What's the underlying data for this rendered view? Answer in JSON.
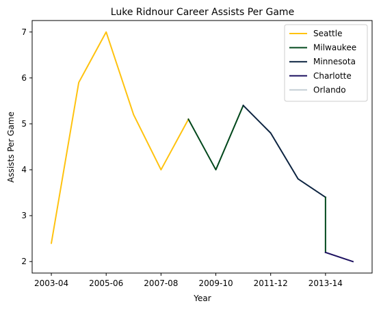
{
  "chart_data": {
    "type": "line",
    "title": "Luke Ridnour Career Assists Per Game",
    "xlabel": "Year",
    "ylabel": "Assists Per Game",
    "x_ticks": [
      "2003-04",
      "2005-06",
      "2007-08",
      "2009-10",
      "2011-12",
      "2013-14"
    ],
    "x_tick_positions": [
      0,
      2,
      4,
      6,
      8,
      10
    ],
    "x_range": [
      -0.7,
      11.7
    ],
    "y_ticks": [
      2,
      3,
      4,
      5,
      6,
      7
    ],
    "ylim": [
      1.75,
      7.25
    ],
    "grid": false,
    "legend_position": "top-right",
    "series": [
      {
        "name": "Seattle",
        "color": "#FFC20E",
        "x": [
          0,
          1,
          2,
          3,
          4,
          5
        ],
        "y": [
          2.4,
          5.9,
          7.0,
          5.2,
          4.0,
          5.1
        ]
      },
      {
        "name": "Milwaukee",
        "color": "#00471B",
        "x": [
          5,
          6,
          7
        ],
        "y": [
          5.1,
          4.0,
          5.4
        ]
      },
      {
        "name": "Minnesota",
        "color": "#0C2340",
        "x": [
          7,
          8,
          9,
          10
        ],
        "y": [
          5.4,
          4.8,
          3.8,
          3.4
        ]
      },
      {
        "name": "Milwaukee",
        "color": "#00471B",
        "x": [
          10,
          10
        ],
        "y": [
          3.4,
          2.2
        ],
        "legend": false
      },
      {
        "name": "Charlotte",
        "color": "#1D1160",
        "x": [
          10,
          11
        ],
        "y": [
          2.2,
          2.0
        ]
      },
      {
        "name": "Orlando",
        "color": "#C4CED4",
        "x": [],
        "y": []
      }
    ]
  }
}
